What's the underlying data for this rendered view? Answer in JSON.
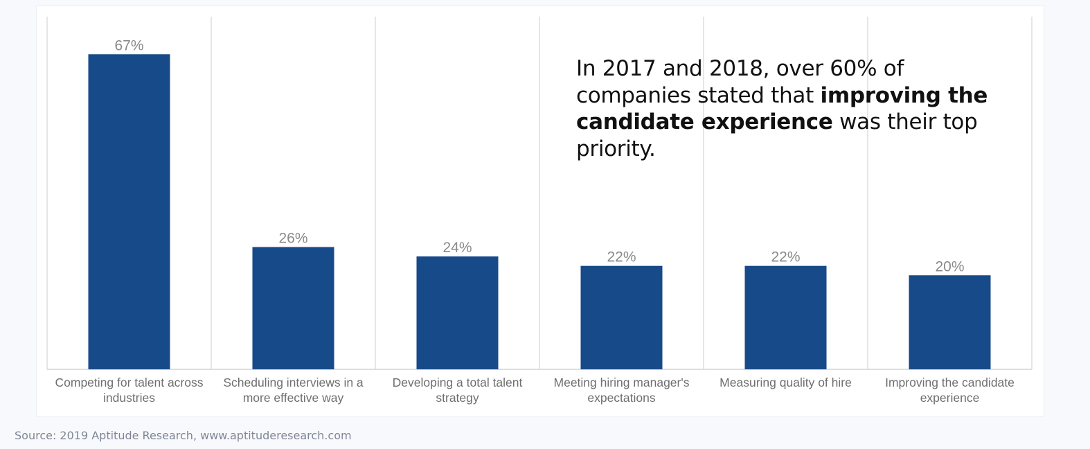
{
  "chart_data": {
    "type": "bar",
    "categories": [
      [
        "Competing for talent across",
        "industries"
      ],
      [
        "Scheduling interviews in a",
        "more effective way"
      ],
      [
        "Developing a total talent",
        "strategy"
      ],
      [
        "Meeting hiring manager's",
        "expectations"
      ],
      [
        "Measuring quality of hire"
      ],
      [
        "Improving the candidate",
        "experience"
      ]
    ],
    "values": [
      67,
      26,
      24,
      22,
      22,
      20
    ],
    "value_labels": [
      "67%",
      "26%",
      "24%",
      "22%",
      "22%",
      "20%"
    ],
    "ylim": [
      0,
      75
    ],
    "title": "",
    "xlabel": "",
    "ylabel": "",
    "bar_color": "#174a89"
  },
  "callout": {
    "part1": "In 2017 and 2018, over 60% of companies stated that ",
    "bold": "improving the candidate experience",
    "part2": " was their top priority."
  },
  "source": "Source: 2019 Aptitude Research, www.aptituderesearch.com"
}
